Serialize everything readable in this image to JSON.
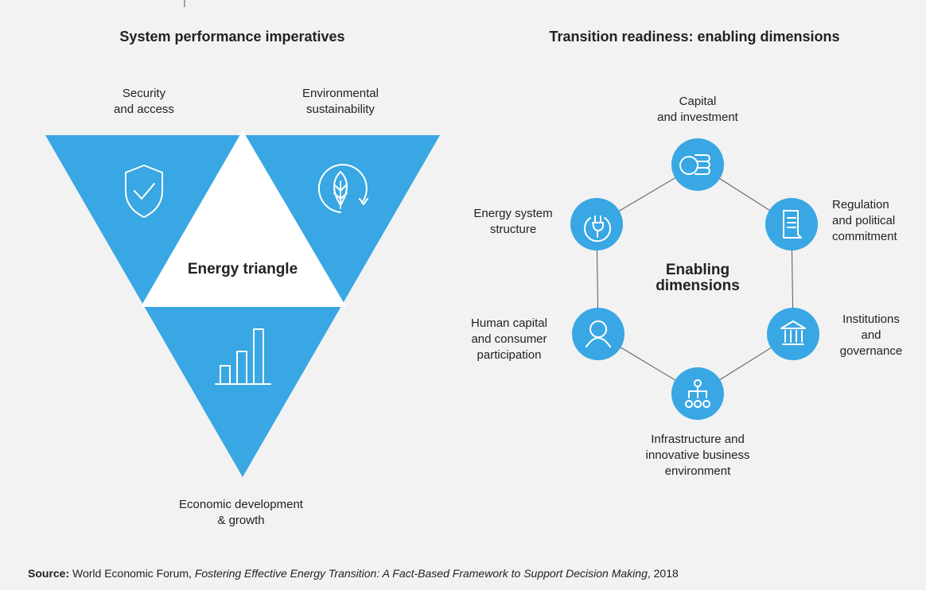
{
  "left": {
    "title": "System performance imperatives",
    "corners": [
      {
        "lines": [
          "Security",
          "and access"
        ]
      },
      {
        "lines": [
          "Environmental",
          "sustainability"
        ]
      },
      {
        "lines": [
          "Economic development",
          "& growth"
        ]
      }
    ],
    "center": "Energy triangle"
  },
  "right": {
    "title": "Transition readiness: enabling dimensions",
    "center": [
      "Enabling",
      "dimensions"
    ],
    "nodes": [
      {
        "lines": [
          "Capital",
          "and investment"
        ]
      },
      {
        "lines": [
          "Regulation",
          "and political",
          "commitment"
        ]
      },
      {
        "lines": [
          "Institutions",
          "and",
          "governance"
        ]
      },
      {
        "lines": [
          "Infrastructure and",
          "innovative business",
          "environment"
        ]
      },
      {
        "lines": [
          "Human capital",
          "and consumer",
          "participation"
        ]
      },
      {
        "lines": [
          "Energy system",
          "structure"
        ]
      }
    ]
  },
  "source": {
    "label": "Source:",
    "publisher": "World Economic Forum,",
    "work": "Fostering Effective Energy Transition: A Fact-Based Framework to Support Decision Making",
    "year": ", 2018"
  }
}
